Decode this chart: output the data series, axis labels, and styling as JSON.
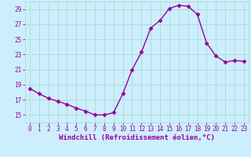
{
  "x": [
    0,
    1,
    2,
    3,
    4,
    5,
    6,
    7,
    8,
    9,
    10,
    11,
    12,
    13,
    14,
    15,
    16,
    17,
    18,
    19,
    20,
    21,
    22,
    23
  ],
  "y": [
    18.5,
    17.8,
    17.2,
    16.8,
    16.4,
    15.9,
    15.5,
    15.0,
    15.0,
    15.3,
    17.8,
    21.0,
    23.3,
    26.5,
    27.5,
    29.1,
    29.5,
    29.4,
    28.3,
    24.5,
    22.8,
    22.0,
    22.2,
    22.1
  ],
  "line_color": "#990099",
  "marker": "D",
  "marker_size": 2.5,
  "bg_color": "#cceeff",
  "grid_color": "#aaddcc",
  "xlabel": "Windchill (Refroidissement éolien,°C)",
  "xlabel_color": "#990099",
  "tick_color": "#990099",
  "ylim": [
    14,
    30
  ],
  "xlim": [
    -0.5,
    23.5
  ],
  "yticks": [
    15,
    17,
    19,
    21,
    23,
    25,
    27,
    29
  ],
  "xticks": [
    0,
    1,
    2,
    3,
    4,
    5,
    6,
    7,
    8,
    9,
    10,
    11,
    12,
    13,
    14,
    15,
    16,
    17,
    18,
    19,
    20,
    21,
    22,
    23
  ],
  "tick_fontsize": 5.5,
  "xlabel_fontsize": 6.5
}
